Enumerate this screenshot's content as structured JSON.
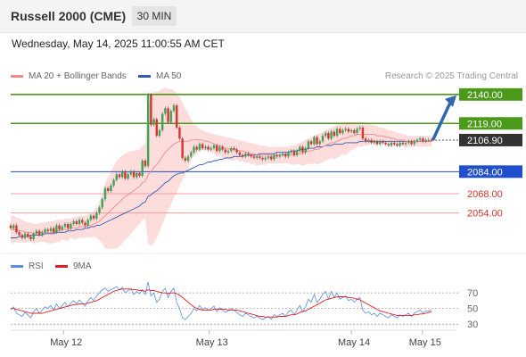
{
  "header": {
    "title": "Russell 2000 (CME)",
    "timeframe": "30 MIN"
  },
  "datetime": "Wednesday, May 14, 2025 11:00:55 AM CET",
  "legend": {
    "ma20": "MA 20 + Bollinger Bands",
    "ma50": "MA 50"
  },
  "credit": "Research © 2025 Trading Central",
  "rsi_legend": {
    "rsi": "RSI",
    "ma9": "9MA"
  },
  "colors": {
    "up": "#3aa655",
    "down": "#d9342b",
    "bollinger": "#fdd6d6",
    "ma20": "#f08a8a",
    "ma50": "#2f5bb5",
    "resistance": "#4c9a1a",
    "pivot": "#1f4fcc",
    "support": "#f29c9c",
    "arrow": "#2f66b0",
    "rsi": "#5b8ee0",
    "rsi_ma": "#e02020",
    "last": "#333333"
  },
  "chart_data": [
    {
      "type": "candlestick",
      "x_tick_labels": [
        "May 12",
        "May 13",
        "May 14",
        "May 15"
      ],
      "ylim": [
        2024,
        2147
      ],
      "last_price": 2106.9,
      "levels": [
        {
          "value": 2140.0,
          "label": "2140.00",
          "kind": "resistance"
        },
        {
          "value": 2119.0,
          "label": "2119.00",
          "kind": "resistance"
        },
        {
          "value": 2106.9,
          "label": "2106.90",
          "kind": "last"
        },
        {
          "value": 2084.0,
          "label": "2084.00",
          "kind": "pivot"
        },
        {
          "value": 2068.0,
          "label": "2068.00",
          "kind": "support"
        },
        {
          "value": 2054.0,
          "label": "2054.00",
          "kind": "support"
        }
      ],
      "close": [
        2043,
        2045,
        2040,
        2038,
        2036,
        2039,
        2037,
        2035,
        2039,
        2041,
        2038,
        2040,
        2042,
        2041,
        2043,
        2040,
        2045,
        2042,
        2044,
        2046,
        2043,
        2046,
        2048,
        2046,
        2049,
        2047,
        2045,
        2049,
        2052,
        2050,
        2054,
        2058,
        2064,
        2072,
        2070,
        2074,
        2078,
        2082,
        2080,
        2084,
        2079,
        2082,
        2084,
        2080,
        2083,
        2081,
        2092,
        2088,
        2140,
        2118,
        2122,
        2110,
        2114,
        2126,
        2130,
        2120,
        2128,
        2132,
        2116,
        2108,
        2094,
        2092,
        2095,
        2098,
        2102,
        2100,
        2104,
        2101,
        2102,
        2100,
        2101,
        2103,
        2099,
        2102,
        2100,
        2098,
        2099,
        2101,
        2100,
        2098,
        2096,
        2095,
        2097,
        2096,
        2095,
        2094,
        2095,
        2094,
        2093,
        2094,
        2095,
        2093,
        2096,
        2095,
        2096,
        2097,
        2095,
        2098,
        2099,
        2096,
        2099,
        2102,
        2098,
        2101,
        2106,
        2104,
        2109,
        2104,
        2106,
        2110,
        2112,
        2108,
        2113,
        2110,
        2115,
        2112,
        2114,
        2115,
        2113,
        2114,
        2112,
        2115,
        2116,
        2108,
        2106,
        2107,
        2105,
        2106,
        2104,
        2106,
        2105,
        2104,
        2103,
        2105,
        2104,
        2103,
        2105,
        2104,
        2105,
        2106,
        2104,
        2106,
        2107,
        2108,
        2106,
        2107,
        2107,
        2106.9
      ],
      "ma20": [
        2042,
        2042,
        2042,
        2041,
        2041,
        2040,
        2040,
        2040,
        2039,
        2039,
        2040,
        2040,
        2040,
        2040,
        2040,
        2040,
        2041,
        2041,
        2042,
        2042,
        2042,
        2043,
        2043,
        2043,
        2044,
        2044,
        2044,
        2045,
        2045,
        2046,
        2047,
        2048,
        2050,
        2052,
        2054,
        2056,
        2058,
        2060,
        2062,
        2064,
        2066,
        2067,
        2069,
        2070,
        2072,
        2073,
        2076,
        2077,
        2082,
        2084,
        2087,
        2089,
        2092,
        2095,
        2098,
        2100,
        2102,
        2104,
        2105,
        2106,
        2106,
        2106,
        2106,
        2107,
        2107,
        2107,
        2107,
        2107,
        2106,
        2106,
        2105,
        2104,
        2103,
        2103,
        2102,
        2101,
        2101,
        2100,
        2100,
        2100,
        2099,
        2099,
        2098,
        2098,
        2097,
        2097,
        2096,
        2096,
        2096,
        2096,
        2096,
        2096,
        2096,
        2096,
        2096,
        2096,
        2096,
        2096,
        2096,
        2096,
        2097,
        2097,
        2097,
        2098,
        2099,
        2099,
        2100,
        2100,
        2101,
        2102,
        2103,
        2104,
        2105,
        2105,
        2106,
        2107,
        2108,
        2108,
        2109,
        2110,
        2110,
        2111,
        2111,
        2111,
        2111,
        2111,
        2111,
        2111,
        2110,
        2110,
        2110,
        2109,
        2109,
        2108,
        2108,
        2107,
        2107,
        2107,
        2106,
        2106,
        2106,
        2106,
        2106,
        2106,
        2106,
        2106,
        2106,
        2106
      ],
      "bb_upper": [
        2052,
        2052,
        2051,
        2050,
        2049,
        2048,
        2047,
        2047,
        2046,
        2046,
        2047,
        2047,
        2047,
        2048,
        2048,
        2048,
        2049,
        2049,
        2049,
        2050,
        2050,
        2050,
        2051,
        2051,
        2052,
        2052,
        2052,
        2053,
        2054,
        2055,
        2058,
        2062,
        2068,
        2076,
        2080,
        2084,
        2088,
        2092,
        2094,
        2096,
        2097,
        2098,
        2099,
        2099,
        2100,
        2100,
        2103,
        2104,
        2132,
        2138,
        2142,
        2142,
        2143,
        2144,
        2145,
        2144,
        2144,
        2143,
        2141,
        2138,
        2134,
        2130,
        2126,
        2122,
        2119,
        2117,
        2115,
        2114,
        2113,
        2112,
        2112,
        2111,
        2111,
        2110,
        2110,
        2109,
        2109,
        2108,
        2108,
        2107,
        2107,
        2106,
        2106,
        2105,
        2105,
        2104,
        2104,
        2103,
        2103,
        2103,
        2102,
        2102,
        2102,
        2102,
        2102,
        2102,
        2102,
        2102,
        2103,
        2103,
        2104,
        2105,
        2106,
        2107,
        2108,
        2109,
        2110,
        2111,
        2112,
        2113,
        2114,
        2115,
        2116,
        2117,
        2118,
        2119,
        2119,
        2120,
        2120,
        2120,
        2120,
        2120,
        2120,
        2120,
        2119,
        2119,
        2118,
        2118,
        2117,
        2116,
        2116,
        2115,
        2114,
        2114,
        2113,
        2112,
        2112,
        2111,
        2111,
        2110,
        2110,
        2110,
        2110,
        2110,
        2110,
        2110,
        2110,
        2110
      ],
      "bb_lower": [
        2032,
        2032,
        2033,
        2032,
        2033,
        2032,
        2033,
        2033,
        2032,
        2032,
        2033,
        2033,
        2033,
        2032,
        2032,
        2032,
        2033,
        2033,
        2035,
        2034,
        2034,
        2036,
        2035,
        2035,
        2036,
        2036,
        2036,
        2037,
        2036,
        2037,
        2036,
        2034,
        2032,
        2028,
        2028,
        2028,
        2028,
        2028,
        2030,
        2032,
        2035,
        2036,
        2039,
        2041,
        2044,
        2046,
        2049,
        2050,
        2032,
        2030,
        2032,
        2036,
        2041,
        2046,
        2051,
        2056,
        2060,
        2065,
        2069,
        2074,
        2078,
        2082,
        2086,
        2092,
        2095,
        2097,
        2099,
        2100,
        2099,
        2100,
        2098,
        2097,
        2095,
        2096,
        2094,
        2093,
        2093,
        2092,
        2092,
        2093,
        2091,
        2092,
        2090,
        2091,
        2089,
        2090,
        2088,
        2089,
        2089,
        2089,
        2090,
        2090,
        2090,
        2090,
        2090,
        2090,
        2090,
        2090,
        2089,
        2089,
        2090,
        2089,
        2088,
        2089,
        2090,
        2089,
        2090,
        2089,
        2090,
        2091,
        2092,
        2093,
        2094,
        2093,
        2094,
        2095,
        2097,
        2096,
        2098,
        2100,
        2100,
        2102,
        2102,
        2102,
        2103,
        2103,
        2104,
        2104,
        2103,
        2104,
        2104,
        2103,
        2104,
        2102,
        2103,
        2102,
        2102,
        2103,
        2101,
        2102,
        2102,
        2102,
        2102,
        2102,
        2102,
        2102,
        2102,
        2102
      ],
      "ma50": [
        2036,
        2036,
        2036,
        2037,
        2037,
        2037,
        2037,
        2038,
        2038,
        2038,
        2038,
        2038,
        2039,
        2039,
        2039,
        2039,
        2040,
        2040,
        2040,
        2040,
        2041,
        2041,
        2041,
        2042,
        2042,
        2042,
        2043,
        2043,
        2044,
        2044,
        2045,
        2045,
        2046,
        2047,
        2048,
        2049,
        2050,
        2051,
        2052,
        2053,
        2054,
        2055,
        2056,
        2057,
        2058,
        2059,
        2061,
        2062,
        2066,
        2067,
        2069,
        2070,
        2072,
        2074,
        2076,
        2077,
        2079,
        2081,
        2082,
        2083,
        2083,
        2084,
        2085,
        2086,
        2087,
        2088,
        2089,
        2089,
        2090,
        2091,
        2091,
        2092,
        2092,
        2093,
        2093,
        2094,
        2094,
        2094,
        2095,
        2095,
        2095,
        2095,
        2096,
        2096,
        2096,
        2096,
        2096,
        2097,
        2097,
        2097,
        2097,
        2097,
        2097,
        2098,
        2098,
        2098,
        2098,
        2098,
        2099,
        2099,
        2099,
        2100,
        2100,
        2100,
        2101,
        2101,
        2101,
        2102,
        2102,
        2102,
        2103,
        2103,
        2103,
        2104,
        2104,
        2104,
        2104,
        2105,
        2105,
        2105,
        2105,
        2105,
        2106,
        2106,
        2106,
        2106,
        2106,
        2106,
        2106,
        2106,
        2106,
        2106,
        2106,
        2106,
        2106,
        2106,
        2106,
        2106,
        2106,
        2106,
        2106,
        2106,
        2106,
        2106,
        2106,
        2106,
        2106,
        2106
      ]
    },
    {
      "type": "line",
      "ylim": [
        20,
        85
      ],
      "y_ticks": [
        70,
        50,
        30
      ],
      "series": [
        {
          "name": "RSI",
          "values": [
            48,
            52,
            44,
            42,
            40,
            45,
            42,
            38,
            46,
            50,
            44,
            48,
            52,
            50,
            54,
            48,
            56,
            50,
            54,
            58,
            52,
            57,
            60,
            56,
            61,
            57,
            53,
            60,
            64,
            60,
            66,
            70,
            74,
            76,
            72,
            74,
            76,
            78,
            74,
            77,
            70,
            73,
            75,
            68,
            72,
            69,
            74,
            68,
            84,
            66,
            70,
            58,
            62,
            72,
            76,
            64,
            72,
            76,
            58,
            50,
            38,
            36,
            40,
            44,
            50,
            47,
            54,
            49,
            51,
            48,
            50,
            53,
            46,
            51,
            48,
            45,
            47,
            50,
            48,
            45,
            42,
            40,
            44,
            42,
            40,
            38,
            40,
            38,
            36,
            38,
            40,
            36,
            42,
            40,
            42,
            44,
            40,
            46,
            48,
            42,
            48,
            54,
            46,
            52,
            62,
            58,
            68,
            58,
            62,
            68,
            72,
            62,
            72,
            64,
            70,
            62,
            64,
            66,
            60,
            62,
            58,
            62,
            64,
            48,
            44,
            46,
            42,
            44,
            40,
            44,
            42,
            40,
            38,
            42,
            40,
            38,
            42,
            40,
            42,
            44,
            40,
            44,
            46,
            48,
            44,
            47,
            47,
            48
          ]
        },
        {
          "name": "9MA",
          "values": [
            50,
            50,
            49,
            48,
            47,
            46,
            45,
            44,
            44,
            44,
            44,
            44,
            45,
            46,
            47,
            48,
            49,
            50,
            51,
            52,
            53,
            54,
            55,
            55,
            56,
            56,
            56,
            57,
            58,
            59,
            60,
            62,
            64,
            66,
            68,
            70,
            72,
            73,
            74,
            75,
            75,
            75,
            75,
            74,
            74,
            73,
            73,
            72,
            74,
            73,
            73,
            72,
            71,
            70,
            70,
            69,
            70,
            70,
            69,
            67,
            64,
            61,
            58,
            55,
            52,
            50,
            49,
            48,
            48,
            48,
            48,
            49,
            49,
            49,
            49,
            49,
            48,
            48,
            48,
            48,
            47,
            46,
            45,
            44,
            43,
            42,
            41,
            40,
            40,
            39,
            39,
            39,
            39,
            39,
            40,
            40,
            40,
            41,
            42,
            42,
            43,
            45,
            46,
            47,
            49,
            51,
            53,
            55,
            57,
            59,
            61,
            62,
            63,
            64,
            65,
            65,
            65,
            65,
            64,
            64,
            63,
            62,
            61,
            59,
            57,
            55,
            53,
            51,
            49,
            47,
            46,
            45,
            44,
            43,
            42,
            41,
            41,
            41,
            41,
            41,
            41,
            42,
            42,
            43,
            43,
            44,
            45,
            46
          ]
        }
      ]
    }
  ]
}
